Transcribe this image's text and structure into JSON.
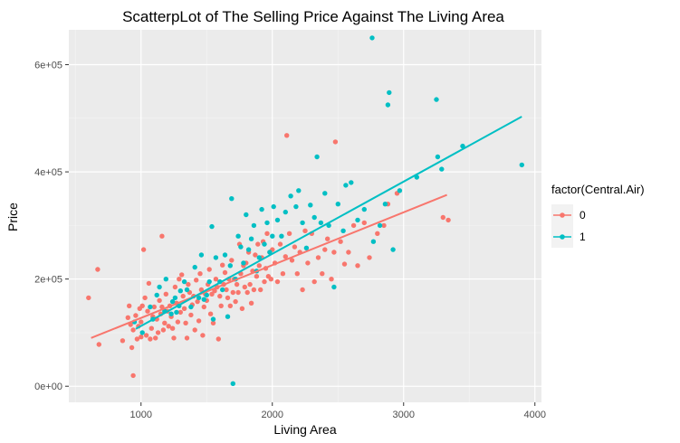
{
  "chart_data": {
    "type": "scatter",
    "title": "ScatterpLot of The Selling Price Against The Living Area",
    "xlabel": "Living Area",
    "ylabel": "Price",
    "xlim": [
      450,
      4050
    ],
    "ylim": [
      -30000,
      665000
    ],
    "x_ticks": [
      1000,
      2000,
      3000,
      4000
    ],
    "x_tick_labels": [
      "1000",
      "2000",
      "3000",
      "4000"
    ],
    "y_ticks": [
      0,
      200000,
      400000,
      600000
    ],
    "y_tick_labels": [
      "0e+00",
      "2e+05",
      "4e+05",
      "6e+05"
    ],
    "grid": true,
    "legend": {
      "title": "factor(Central.Air)",
      "position": "right",
      "entries": [
        "0",
        "1"
      ]
    },
    "series": [
      {
        "name": "0",
        "color": "#F8766D",
        "fit_line": {
          "x": [
            620,
            3330
          ],
          "y": [
            90000,
            357000
          ]
        },
        "points": [
          [
            600,
            165000
          ],
          [
            670,
            218000
          ],
          [
            680,
            78000
          ],
          [
            860,
            85000
          ],
          [
            900,
            128000
          ],
          [
            910,
            150000
          ],
          [
            920,
            115000
          ],
          [
            930,
            72000
          ],
          [
            940,
            105000
          ],
          [
            940,
            20000
          ],
          [
            960,
            132000
          ],
          [
            970,
            88000
          ],
          [
            980,
            112000
          ],
          [
            990,
            145000
          ],
          [
            1000,
            92000
          ],
          [
            1000,
            120000
          ],
          [
            1010,
            150000
          ],
          [
            1020,
            255000
          ],
          [
            1030,
            165000
          ],
          [
            1040,
            95000
          ],
          [
            1050,
            140000
          ],
          [
            1060,
            192000
          ],
          [
            1070,
            88000
          ],
          [
            1080,
            108000
          ],
          [
            1090,
            130000
          ],
          [
            1100,
            148000
          ],
          [
            1110,
            90000
          ],
          [
            1120,
            125000
          ],
          [
            1130,
            100000
          ],
          [
            1140,
            160000
          ],
          [
            1150,
            135000
          ],
          [
            1160,
            148000
          ],
          [
            1160,
            280000
          ],
          [
            1170,
            105000
          ],
          [
            1180,
            118000
          ],
          [
            1190,
            172000
          ],
          [
            1200,
            140000
          ],
          [
            1210,
            112000
          ],
          [
            1220,
            150000
          ],
          [
            1230,
            130000
          ],
          [
            1240,
            108000
          ],
          [
            1250,
            90000
          ],
          [
            1260,
            185000
          ],
          [
            1270,
            155000
          ],
          [
            1280,
            120000
          ],
          [
            1290,
            200000
          ],
          [
            1300,
            138000
          ],
          [
            1310,
            208000
          ],
          [
            1320,
            168000
          ],
          [
            1330,
            145000
          ],
          [
            1340,
            118000
          ],
          [
            1350,
            90000
          ],
          [
            1360,
            190000
          ],
          [
            1370,
            175000
          ],
          [
            1380,
            133000
          ],
          [
            1390,
            152000
          ],
          [
            1400,
            168000
          ],
          [
            1410,
            105000
          ],
          [
            1420,
            198000
          ],
          [
            1430,
            158000
          ],
          [
            1440,
            122000
          ],
          [
            1450,
            210000
          ],
          [
            1460,
            180000
          ],
          [
            1470,
            95000
          ],
          [
            1480,
            148000
          ],
          [
            1490,
            172000
          ],
          [
            1500,
            160000
          ],
          [
            1510,
            190000
          ],
          [
            1520,
            218000
          ],
          [
            1530,
            135000
          ],
          [
            1540,
            172000
          ],
          [
            1550,
            118000
          ],
          [
            1560,
            178000
          ],
          [
            1570,
            200000
          ],
          [
            1580,
            185000
          ],
          [
            1590,
            88000
          ],
          [
            1600,
            168000
          ],
          [
            1610,
            150000
          ],
          [
            1620,
            226000
          ],
          [
            1630,
            190000
          ],
          [
            1640,
            212000
          ],
          [
            1650,
            180000
          ],
          [
            1660,
            165000
          ],
          [
            1670,
            200000
          ],
          [
            1680,
            150000
          ],
          [
            1690,
            235000
          ],
          [
            1700,
            175000
          ],
          [
            1710,
            200000
          ],
          [
            1720,
            158000
          ],
          [
            1730,
            190000
          ],
          [
            1740,
            175000
          ],
          [
            1750,
            265000
          ],
          [
            1760,
            210000
          ],
          [
            1770,
            145000
          ],
          [
            1780,
            225000
          ],
          [
            1790,
            185000
          ],
          [
            1800,
            230000
          ],
          [
            1810,
            175000
          ],
          [
            1820,
            250000
          ],
          [
            1830,
            190000
          ],
          [
            1840,
            155000
          ],
          [
            1850,
            215000
          ],
          [
            1860,
            180000
          ],
          [
            1870,
            245000
          ],
          [
            1880,
            205000
          ],
          [
            1890,
            265000
          ],
          [
            1900,
            225000
          ],
          [
            1910,
            180000
          ],
          [
            1920,
            240000
          ],
          [
            1930,
            270000
          ],
          [
            1940,
            195000
          ],
          [
            1950,
            220000
          ],
          [
            1960,
            285000
          ],
          [
            1970,
            205000
          ],
          [
            1980,
            250000
          ],
          [
            1990,
            200000
          ],
          [
            2000,
            255000
          ],
          [
            2020,
            230000
          ],
          [
            2040,
            195000
          ],
          [
            2060,
            265000
          ],
          [
            2080,
            210000
          ],
          [
            2100,
            242000
          ],
          [
            2110,
            468000
          ],
          [
            2130,
            285000
          ],
          [
            2150,
            235000
          ],
          [
            2170,
            260000
          ],
          [
            2190,
            210000
          ],
          [
            2210,
            250000
          ],
          [
            2230,
            180000
          ],
          [
            2250,
            290000
          ],
          [
            2270,
            230000
          ],
          [
            2300,
            285000
          ],
          [
            2320,
            195000
          ],
          [
            2350,
            240000
          ],
          [
            2380,
            210000
          ],
          [
            2400,
            255000
          ],
          [
            2420,
            275000
          ],
          [
            2450,
            200000
          ],
          [
            2470,
            250000
          ],
          [
            2480,
            456000
          ],
          [
            2520,
            270000
          ],
          [
            2550,
            228000
          ],
          [
            2580,
            250000
          ],
          [
            2620,
            300000
          ],
          [
            2650,
            225000
          ],
          [
            2700,
            305000
          ],
          [
            2740,
            240000
          ],
          [
            2800,
            285000
          ],
          [
            2850,
            300000
          ],
          [
            2880,
            340000
          ],
          [
            2950,
            360000
          ],
          [
            3300,
            315000
          ],
          [
            3340,
            310000
          ]
        ]
      },
      {
        "name": "1",
        "color": "#00BFC4",
        "fit_line": {
          "x": [
            960,
            3900
          ],
          "y": [
            107000,
            503000
          ]
        },
        "points": [
          [
            950,
            120000
          ],
          [
            1010,
            100000
          ],
          [
            1070,
            148000
          ],
          [
            1090,
            125000
          ],
          [
            1120,
            170000
          ],
          [
            1140,
            185000
          ],
          [
            1180,
            140000
          ],
          [
            1190,
            200000
          ],
          [
            1230,
            135000
          ],
          [
            1240,
            158000
          ],
          [
            1260,
            165000
          ],
          [
            1270,
            138000
          ],
          [
            1290,
            150000
          ],
          [
            1300,
            178000
          ],
          [
            1330,
            195000
          ],
          [
            1350,
            180000
          ],
          [
            1380,
            148000
          ],
          [
            1410,
            222000
          ],
          [
            1440,
            165000
          ],
          [
            1460,
            245000
          ],
          [
            1480,
            162000
          ],
          [
            1500,
            170000
          ],
          [
            1520,
            195000
          ],
          [
            1540,
            298000
          ],
          [
            1550,
            125000
          ],
          [
            1570,
            240000
          ],
          [
            1600,
            195000
          ],
          [
            1620,
            180000
          ],
          [
            1640,
            245000
          ],
          [
            1660,
            130000
          ],
          [
            1680,
            225000
          ],
          [
            1690,
            350000
          ],
          [
            1700,
            5000
          ],
          [
            1720,
            200000
          ],
          [
            1740,
            280000
          ],
          [
            1760,
            260000
          ],
          [
            1780,
            230000
          ],
          [
            1800,
            320000
          ],
          [
            1820,
            255000
          ],
          [
            1840,
            275000
          ],
          [
            1860,
            300000
          ],
          [
            1880,
            215000
          ],
          [
            1900,
            240000
          ],
          [
            1920,
            330000
          ],
          [
            1940,
            265000
          ],
          [
            1960,
            305000
          ],
          [
            1980,
            250000
          ],
          [
            2000,
            280000
          ],
          [
            2010,
            335000
          ],
          [
            2040,
            310000
          ],
          [
            2070,
            280000
          ],
          [
            2100,
            325000
          ],
          [
            2140,
            355000
          ],
          [
            2180,
            335000
          ],
          [
            2200,
            365000
          ],
          [
            2230,
            305000
          ],
          [
            2260,
            258000
          ],
          [
            2290,
            338000
          ],
          [
            2320,
            315000
          ],
          [
            2340,
            428000
          ],
          [
            2370,
            305000
          ],
          [
            2400,
            360000
          ],
          [
            2430,
            300000
          ],
          [
            2470,
            185000
          ],
          [
            2500,
            340000
          ],
          [
            2540,
            290000
          ],
          [
            2560,
            375000
          ],
          [
            2600,
            380000
          ],
          [
            2650,
            310000
          ],
          [
            2700,
            330000
          ],
          [
            2760,
            650000
          ],
          [
            2770,
            270000
          ],
          [
            2820,
            300000
          ],
          [
            2860,
            340000
          ],
          [
            2880,
            525000
          ],
          [
            2890,
            548000
          ],
          [
            2920,
            255000
          ],
          [
            2970,
            365000
          ],
          [
            3100,
            390000
          ],
          [
            3250,
            535000
          ],
          [
            3260,
            428000
          ],
          [
            3290,
            405000
          ],
          [
            3450,
            448000
          ],
          [
            3900,
            413000
          ]
        ]
      }
    ]
  }
}
